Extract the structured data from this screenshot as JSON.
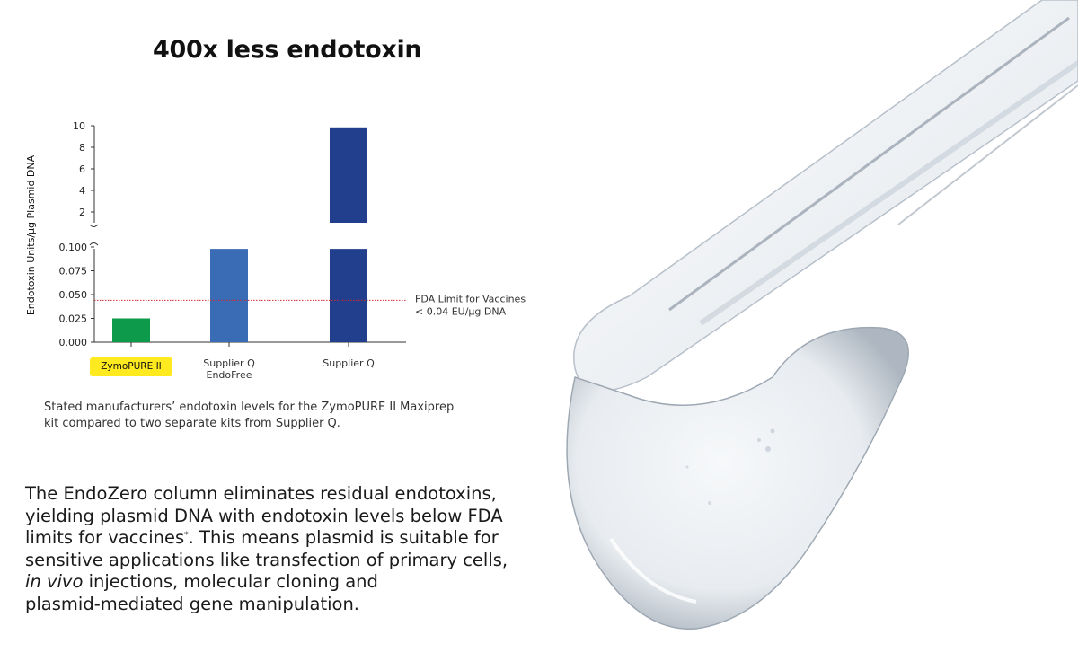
{
  "page": {
    "headline": "400x less endotoxin",
    "caption_line1": "Stated manufacturers’ endotoxin levels for the ZymoPURE II Maxiprep",
    "caption_line2": "kit compared to two separate kits from Supplier Q.",
    "body_line1": "The EndoZero column eliminates residual endotoxins,",
    "body_line2": "yielding plasmid DNA with endotoxin levels below FDA",
    "body_line3_a": "limits for vaccines",
    "body_line3_sup": "*",
    "body_line3_b": ". This means plasmid is suitable for",
    "body_line4": "sensitive applications like transfection of primary cells,",
    "body_line5_em": "in vivo",
    "body_line5_b": " injections, molecular cloning and",
    "body_line6": "plasmid-mediated gene manipulation."
  },
  "chart_data": {
    "type": "bar",
    "title": "",
    "ylabel": "Endotoxin Units/µg Plasmid DNA",
    "categories": [
      "ZymoPURE II",
      "Supplier Q EndoFree",
      "Supplier Q"
    ],
    "category_label_lines": [
      [
        "ZymoPURE II"
      ],
      [
        "Supplier Q",
        "EndoFree"
      ],
      [
        "Supplier Q"
      ]
    ],
    "highlighted_category": "ZymoPURE II",
    "highlight_color": "#ffe91f",
    "values": [
      0.025,
      0.1,
      10
    ],
    "bar_colors": [
      "#0d9a4a",
      "#3a6bb5",
      "#213f8d"
    ],
    "y_axis_break": true,
    "ylim_lower": [
      0,
      0.1
    ],
    "ylim_upper": [
      1,
      10
    ],
    "yticks_lower": [
      "0.000",
      "0.025",
      "0.050",
      "0.075",
      "0.100"
    ],
    "yticks_upper": [
      "2",
      "4",
      "6",
      "8",
      "10"
    ],
    "reference_line": {
      "value": 0.044,
      "label_line1": "FDA Limit for Vaccines",
      "label_line2": "< 0.04 EU/µg DNA",
      "color": "#d62a2a",
      "style": "dotted"
    },
    "grid": false,
    "legend": "none"
  }
}
